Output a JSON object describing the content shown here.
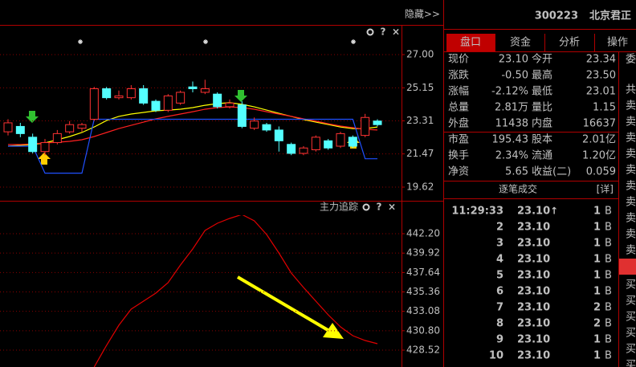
{
  "toolbar": {
    "hide": "隐藏>>"
  },
  "stock": {
    "code": "300223",
    "name": "北京君正"
  },
  "tabs": [
    "盘口",
    "资金",
    "分析",
    "操作"
  ],
  "quote": {
    "rows": [
      {
        "l1": "现价",
        "v1": "23.10",
        "c1": "#00e600",
        "l2": "今开",
        "v2": "23.34",
        "c2": "#00e600"
      },
      {
        "l1": "涨跌",
        "v1": "-0.50",
        "c1": "#00e600",
        "l2": "最高",
        "v2": "23.50",
        "c2": "#00e600"
      },
      {
        "l1": "涨幅",
        "v1": "-2.12%",
        "c1": "#00e600",
        "l2": "最低",
        "v2": "23.01",
        "c2": "#00e600"
      },
      {
        "l1": "总量",
        "v1": "2.81万",
        "c1": "#e0e0e0",
        "l2": "量比",
        "v2": "1.15",
        "c2": "#e0e0e0"
      },
      {
        "l1": "外盘",
        "v1": "11438",
        "c1": "#ff3232",
        "l2": "内盘",
        "v2": "16637",
        "c2": "#00e600"
      },
      {
        "l1": "市盈",
        "v1": "195.43",
        "c1": "#e0e0e0",
        "l2": "股本",
        "v2": "2.01亿",
        "c2": "#e0e0e0"
      },
      {
        "l1": "换手",
        "v1": "2.34%",
        "c1": "#e0e0e0",
        "l2": "流通",
        "v2": "1.20亿",
        "c2": "#e0e0e0"
      },
      {
        "l1": "净资",
        "v1": "5.65",
        "c1": "#e0e0e0",
        "l2": "收益(二)",
        "v2": "0.059",
        "c2": "#e0e0e0"
      }
    ]
  },
  "trades": {
    "title": "逐笔成交",
    "detail": "[详]",
    "rows": [
      {
        "time": "11:29:33",
        "price": "23.10",
        "dir": "↑",
        "volume": "1",
        "side": "B"
      },
      {
        "time": "2",
        "price": "23.10",
        "volume": "1",
        "side": "B"
      },
      {
        "time": "3",
        "price": "23.10",
        "volume": "1",
        "side": "B"
      },
      {
        "time": "4",
        "price": "23.10",
        "volume": "1",
        "side": "B"
      },
      {
        "time": "5",
        "price": "23.10",
        "volume": "1",
        "side": "B"
      },
      {
        "time": "6",
        "price": "23.10",
        "volume": "1",
        "side": "B"
      },
      {
        "time": "7",
        "price": "23.10",
        "volume": "2",
        "side": "B"
      },
      {
        "time": "8",
        "price": "23.10",
        "volume": "2",
        "side": "B"
      },
      {
        "time": "9",
        "price": "23.10",
        "volume": "1",
        "side": "B"
      },
      {
        "time": "10",
        "price": "23.10",
        "volume": "1",
        "side": "B"
      }
    ]
  },
  "side_column": [
    "委",
    "共",
    "卖",
    "卖",
    "卖",
    "卖",
    "卖",
    "卖",
    "卖",
    "卖",
    "卖",
    "卖",
    "买",
    "买",
    "买",
    "买",
    "买",
    "买"
  ],
  "controls": [
    "?",
    "×"
  ],
  "chart_data": [
    {
      "type": "candlestick",
      "open": [
        22.7,
        23.0,
        22.4,
        21.6,
        22.1,
        22.7,
        22.9,
        23.4,
        25.1,
        24.6,
        24.6,
        25.1,
        24.4,
        23.9,
        24.3,
        25.2,
        24.9,
        24.8,
        24.1,
        24.2,
        22.9,
        23.1,
        22.8,
        22.0,
        21.5,
        21.7,
        22.2,
        21.9,
        22.4,
        22.5,
        23.3
      ],
      "high": [
        23.4,
        23.2,
        22.6,
        22.3,
        22.8,
        23.3,
        23.2,
        25.2,
        25.2,
        25.0,
        25.3,
        25.3,
        24.5,
        24.8,
        25.0,
        25.5,
        25.6,
        24.9,
        24.5,
        24.4,
        23.5,
        23.2,
        23.0,
        22.1,
        21.9,
        22.5,
        22.3,
        22.7,
        22.5,
        23.7,
        23.4
      ],
      "low": [
        22.5,
        22.4,
        21.5,
        21.4,
        22.0,
        22.6,
        22.7,
        23.3,
        24.5,
        24.5,
        24.5,
        24.2,
        23.8,
        23.8,
        24.2,
        24.9,
        24.8,
        24.0,
        24.0,
        22.9,
        22.8,
        22.7,
        21.6,
        21.4,
        21.4,
        21.6,
        21.7,
        21.8,
        21.8,
        22.4,
        23.0
      ],
      "close": [
        23.2,
        22.6,
        21.6,
        22.1,
        22.6,
        23.1,
        23.1,
        25.1,
        24.6,
        24.7,
        25.1,
        24.3,
        23.9,
        24.7,
        24.9,
        25.1,
        25.1,
        24.1,
        24.3,
        23.0,
        23.3,
        22.8,
        22.2,
        21.5,
        21.8,
        22.4,
        21.8,
        22.6,
        21.9,
        23.5,
        23.1
      ],
      "lines": [
        {
          "color": "#ffff00",
          "values": [
            21.9,
            21.95,
            21.99,
            22.08,
            22.26,
            22.44,
            22.66,
            22.97,
            23.33,
            23.56,
            23.69,
            23.78,
            23.87,
            23.91,
            23.96,
            24.05,
            24.18,
            24.27,
            24.32,
            24.23,
            24.09,
            23.91,
            23.73,
            23.56,
            23.38,
            23.24,
            23.11,
            22.97,
            22.88,
            22.88,
            22.97
          ]
        },
        {
          "color": "#ff2020",
          "values": [
            21.99,
            21.99,
            22.03,
            22.08,
            22.12,
            22.17,
            22.26,
            22.44,
            22.66,
            22.88,
            23.06,
            23.24,
            23.42,
            23.56,
            23.69,
            23.82,
            23.96,
            24.05,
            24.09,
            24.05,
            23.96,
            23.82,
            23.69,
            23.56,
            23.42,
            23.29,
            23.15,
            23.02,
            22.93,
            22.84,
            22.8
          ]
        },
        {
          "color": "#2050ff",
          "values": [
            21.9,
            21.9,
            21.9,
            20.4,
            20.4,
            20.4,
            20.4,
            23.4,
            23.4,
            23.4,
            23.4,
            23.4,
            23.4,
            23.4,
            23.4,
            23.4,
            23.4,
            23.4,
            23.4,
            23.4,
            23.4,
            23.4,
            23.4,
            23.4,
            23.4,
            23.4,
            23.4,
            23.4,
            23.4,
            21.2,
            21.2
          ]
        }
      ],
      "ylim": [
        18.86,
        28.61
      ],
      "yticks": [
        {
          "value": 27,
          "label": "27.00"
        },
        25.15,
        23.31,
        21.47,
        19.62
      ],
      "grid": true
    },
    {
      "type": "line",
      "title": "主力追踪",
      "color": "#e00000",
      "values": [
        null,
        null,
        null,
        null,
        null,
        null,
        null,
        426.54,
        429.09,
        431.45,
        433.33,
        434.28,
        435.22,
        436.45,
        438.52,
        440.41,
        442.58,
        443.43,
        443.99,
        444.46,
        443.71,
        442.11,
        439.94,
        437.58,
        435.88,
        434.28,
        432.67,
        431.26,
        430.22,
        429.65,
        429.28
      ],
      "ylim": [
        426.54,
        446.07
      ],
      "yticks": [
        {
          "value": 442.2,
          "label": "442.20"
        },
        439.92,
        437.64,
        435.36,
        433.08,
        {
          "value": 430.8,
          "label": "430.80"
        },
        428.52
      ],
      "grid": true
    }
  ]
}
